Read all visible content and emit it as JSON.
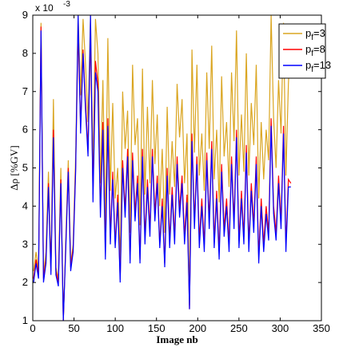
{
  "chart_data": {
    "type": "line",
    "xlabel": "Image nb",
    "ylabel": "Δρ [%GV]",
    "y_exponent_label": "x 10",
    "y_exponent_power": "-3",
    "xlim": [
      0,
      350
    ],
    "ylim": [
      1,
      9
    ],
    "x_ticks": [
      0,
      50,
      100,
      150,
      200,
      250,
      300,
      350
    ],
    "y_ticks": [
      1,
      2,
      3,
      4,
      5,
      6,
      7,
      8,
      9
    ],
    "x_tick_labels": [
      "0",
      "50",
      "100",
      "150",
      "200",
      "250",
      "300",
      "350"
    ],
    "y_tick_labels": [
      "1",
      "2",
      "3",
      "4",
      "5",
      "6",
      "7",
      "8",
      "9"
    ],
    "grid": false,
    "legend_position": "top-right",
    "series": [
      {
        "name_prefix": "p",
        "name_subscript": "f",
        "name_suffix": "=3",
        "color": "#DAA520",
        "x": [
          1,
          4,
          7,
          10,
          13,
          16,
          19,
          22,
          25,
          28,
          31,
          34,
          37,
          40,
          43,
          46,
          49,
          52,
          55,
          58,
          61,
          64,
          67,
          70,
          73,
          76,
          79,
          82,
          85,
          88,
          91,
          94,
          97,
          100,
          103,
          106,
          109,
          112,
          115,
          118,
          121,
          124,
          127,
          130,
          133,
          136,
          139,
          142,
          145,
          148,
          151,
          154,
          157,
          160,
          163,
          166,
          169,
          172,
          175,
          178,
          181,
          184,
          187,
          190,
          193,
          196,
          199,
          202,
          205,
          208,
          211,
          214,
          217,
          220,
          223,
          226,
          229,
          232,
          235,
          238,
          241,
          244,
          247,
          250,
          253,
          256,
          259,
          262,
          265,
          268,
          271,
          274,
          277,
          280,
          283,
          286,
          289,
          292,
          295,
          298,
          301,
          304,
          307,
          310,
          313
        ],
        "y": [
          2.3,
          2.8,
          2.3,
          8.8,
          2.2,
          2.8,
          4.9,
          2.3,
          6.8,
          2.4,
          2.1,
          5.0,
          1.0,
          3.1,
          5.2,
          2.5,
          3.0,
          5.3,
          9.0,
          6.9,
          8.9,
          7.7,
          6.2,
          9.0,
          5.0,
          8.9,
          8.0,
          4.6,
          7.3,
          3.5,
          8.4,
          4.4,
          6.7,
          4.2,
          5.0,
          2.5,
          7.0,
          5.5,
          6.5,
          3.3,
          7.7,
          5.6,
          6.3,
          3.5,
          7.6,
          4.3,
          6.6,
          4.6,
          7.3,
          5.1,
          6.4,
          4.0,
          5.5,
          3.3,
          6.6,
          4.3,
          5.7,
          4.5,
          7.2,
          5.8,
          6.8,
          4.6,
          5.9,
          1.4,
          8.1,
          5.4,
          7.7,
          4.8,
          5.9,
          4.4,
          7.5,
          5.5,
          8.2,
          4.7,
          6.0,
          4.1,
          7.4,
          5.3,
          6.2,
          4.5,
          7.5,
          5.7,
          8.6,
          4.8,
          6.4,
          4.9,
          8.0,
          4.8,
          6.7,
          5.6,
          7.7,
          4.2,
          6.2,
          4.7,
          6.0,
          5.2,
          9.0,
          6.3,
          5.0,
          7.3,
          5.9,
          8.8,
          4.8,
          7.2,
          8.6
        ]
      },
      {
        "name_prefix": "p",
        "name_subscript": "f",
        "name_suffix": "=8",
        "color": "#FF0000",
        "x": [
          1,
          4,
          7,
          10,
          13,
          16,
          19,
          22,
          25,
          28,
          31,
          34,
          37,
          40,
          43,
          46,
          49,
          52,
          55,
          58,
          61,
          64,
          67,
          70,
          73,
          76,
          79,
          82,
          85,
          88,
          91,
          94,
          97,
          100,
          103,
          106,
          109,
          112,
          115,
          118,
          121,
          124,
          127,
          130,
          133,
          136,
          139,
          142,
          145,
          148,
          151,
          154,
          157,
          160,
          163,
          166,
          169,
          172,
          175,
          178,
          181,
          184,
          187,
          190,
          193,
          196,
          199,
          202,
          205,
          208,
          211,
          214,
          217,
          220,
          223,
          226,
          229,
          232,
          235,
          238,
          241,
          244,
          247,
          250,
          253,
          256,
          259,
          262,
          265,
          268,
          271,
          274,
          277,
          280,
          283,
          286,
          289,
          292,
          295,
          298,
          301,
          304,
          307,
          310,
          313
        ],
        "y": [
          2.1,
          2.6,
          2.2,
          8.7,
          2.1,
          2.6,
          4.6,
          2.3,
          6.0,
          2.3,
          2.0,
          4.7,
          1.0,
          3.0,
          5.0,
          2.4,
          2.9,
          5.0,
          8.6,
          6.1,
          8.1,
          6.7,
          5.5,
          8.5,
          4.3,
          7.8,
          7.2,
          3.9,
          6.2,
          2.8,
          6.3,
          3.2,
          4.9,
          3.0,
          4.3,
          2.1,
          5.2,
          3.9,
          5.5,
          2.6,
          5.4,
          3.8,
          4.8,
          2.6,
          5.5,
          3.2,
          4.7,
          3.4,
          5.5,
          3.8,
          4.8,
          3.0,
          4.2,
          2.5,
          5.0,
          3.1,
          4.5,
          3.2,
          5.3,
          3.9,
          4.8,
          3.2,
          4.3,
          1.3,
          5.9,
          3.6,
          5.3,
          3.1,
          4.2,
          3.0,
          5.4,
          3.6,
          5.7,
          3.1,
          4.4,
          2.8,
          5.1,
          3.4,
          4.2,
          3.0,
          5.3,
          3.6,
          6.0,
          3.1,
          4.4,
          3.2,
          5.6,
          3.0,
          4.6,
          3.5,
          5.3,
          2.7,
          4.2,
          3.0,
          4.0,
          3.3,
          6.3,
          4.0,
          3.3,
          4.8,
          3.6,
          6.1,
          3.0,
          4.7,
          4.6
        ]
      },
      {
        "name_prefix": "p",
        "name_subscript": "f",
        "name_suffix": "=13",
        "color": "#0000FF",
        "x": [
          1,
          4,
          7,
          10,
          13,
          16,
          19,
          22,
          25,
          28,
          31,
          34,
          37,
          40,
          43,
          46,
          49,
          52,
          55,
          58,
          61,
          64,
          67,
          70,
          73,
          76,
          79,
          82,
          85,
          88,
          91,
          94,
          97,
          100,
          103,
          106,
          109,
          112,
          115,
          118,
          121,
          124,
          127,
          130,
          133,
          136,
          139,
          142,
          145,
          148,
          151,
          154,
          157,
          160,
          163,
          166,
          169,
          172,
          175,
          178,
          181,
          184,
          187,
          190,
          193,
          196,
          199,
          202,
          205,
          208,
          211,
          214,
          217,
          220,
          223,
          226,
          229,
          232,
          235,
          238,
          241,
          244,
          247,
          250,
          253,
          256,
          259,
          262,
          265,
          268,
          271,
          274,
          277,
          280,
          283,
          286,
          289,
          292,
          295,
          298,
          301,
          304,
          307,
          310,
          313
        ],
        "y": [
          2.0,
          2.5,
          2.1,
          8.6,
          2.0,
          2.5,
          4.5,
          2.2,
          5.8,
          2.2,
          1.9,
          4.6,
          1.0,
          2.9,
          4.9,
          2.3,
          2.8,
          4.9,
          9.0,
          5.9,
          8.0,
          6.5,
          5.3,
          9.0,
          4.1,
          7.5,
          7.0,
          3.7,
          6.0,
          2.6,
          6.1,
          3.0,
          4.7,
          2.9,
          4.1,
          2.0,
          5.0,
          3.7,
          5.3,
          2.5,
          5.2,
          3.6,
          4.6,
          2.5,
          5.3,
          3.0,
          4.5,
          3.2,
          5.3,
          3.6,
          4.6,
          2.9,
          4.0,
          2.4,
          4.8,
          2.9,
          4.3,
          3.0,
          5.1,
          3.7,
          4.6,
          3.0,
          4.1,
          1.3,
          5.7,
          3.4,
          5.1,
          2.9,
          4.0,
          2.8,
          5.2,
          3.4,
          5.5,
          2.9,
          4.2,
          2.6,
          4.9,
          3.2,
          4.0,
          2.8,
          5.1,
          3.4,
          5.8,
          2.9,
          4.2,
          3.0,
          5.4,
          2.8,
          4.4,
          3.3,
          5.1,
          2.5,
          4.0,
          2.8,
          3.8,
          3.1,
          6.1,
          3.8,
          3.1,
          4.6,
          3.4,
          5.9,
          2.8,
          4.5,
          4.5
        ]
      }
    ]
  }
}
